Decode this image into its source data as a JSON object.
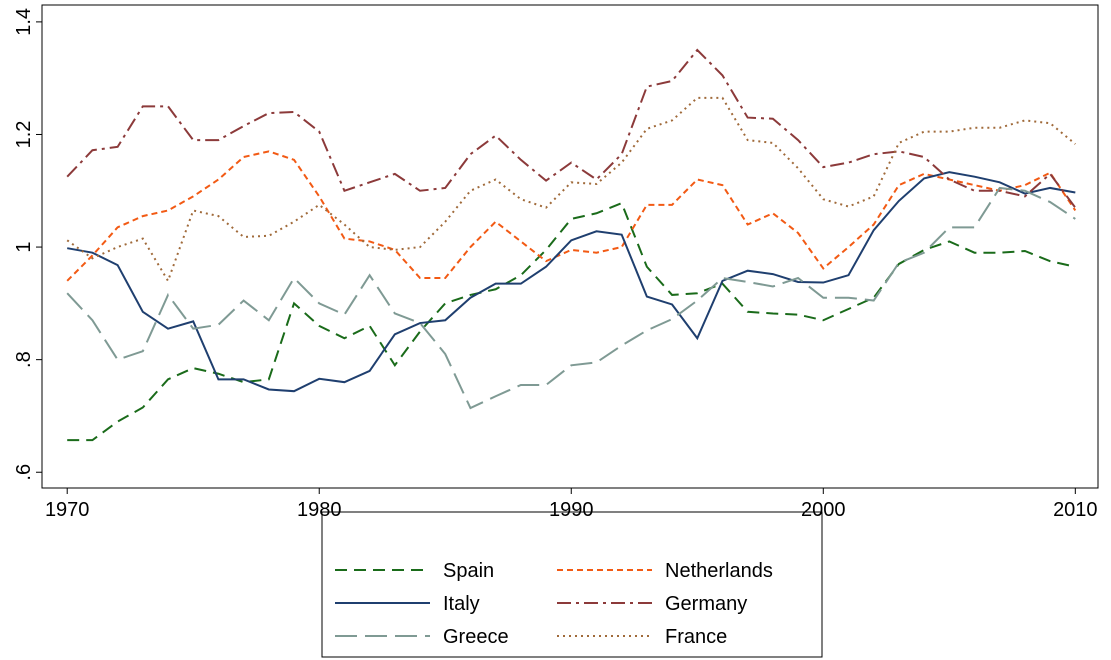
{
  "chart_data": {
    "type": "line",
    "x": [
      1970,
      1971,
      1972,
      1973,
      1974,
      1975,
      1976,
      1977,
      1978,
      1979,
      1980,
      1981,
      1982,
      1983,
      1984,
      1985,
      1986,
      1987,
      1988,
      1989,
      1990,
      1991,
      1992,
      1993,
      1994,
      1995,
      1996,
      1997,
      1998,
      1999,
      2000,
      2001,
      2002,
      2003,
      2004,
      2005,
      2006,
      2007,
      2008,
      2009,
      2010
    ],
    "xlim": [
      1969,
      2010.9
    ],
    "xticks": [
      1970,
      1980,
      1990,
      2000,
      2010
    ],
    "ylim": [
      0.572,
      1.43
    ],
    "yticks": [
      {
        "value": 0.6,
        "label": ".6"
      },
      {
        "value": 0.8,
        "label": ".8"
      },
      1,
      1.2,
      1.4
    ],
    "series": [
      {
        "name": "Spain",
        "color": "#1a6b1a",
        "style": "dash",
        "values": [
          0.657,
          0.657,
          0.69,
          0.715,
          0.765,
          0.785,
          0.775,
          0.76,
          0.765,
          0.9,
          0.86,
          0.838,
          0.86,
          0.79,
          0.85,
          0.9,
          0.915,
          0.925,
          0.95,
          0.995,
          1.05,
          1.06,
          1.078,
          0.965,
          0.915,
          0.918,
          0.935,
          0.885,
          0.882,
          0.88,
          0.87,
          0.89,
          0.91,
          0.97,
          0.995,
          1.01,
          0.99,
          0.99,
          0.993,
          0.975,
          0.965
        ]
      },
      {
        "name": "Netherlands",
        "color": "#f25a14",
        "style": "shortdash",
        "values": [
          0.94,
          0.985,
          1.035,
          1.055,
          1.065,
          1.09,
          1.12,
          1.16,
          1.17,
          1.155,
          1.09,
          1.015,
          1.01,
          0.995,
          0.945,
          0.945,
          1.0,
          1.045,
          1.01,
          0.975,
          0.995,
          0.99,
          1.0,
          1.075,
          1.075,
          1.12,
          1.11,
          1.04,
          1.06,
          1.025,
          0.962,
          1.0,
          1.04,
          1.11,
          1.13,
          1.12,
          1.11,
          1.1,
          1.11,
          1.132,
          1.065
        ]
      },
      {
        "name": "Italy",
        "color": "#1f3f6f",
        "style": "solid",
        "values": [
          0.998,
          0.99,
          0.968,
          0.885,
          0.855,
          0.868,
          0.765,
          0.765,
          0.747,
          0.744,
          0.766,
          0.76,
          0.78,
          0.845,
          0.865,
          0.87,
          0.91,
          0.935,
          0.935,
          0.965,
          1.012,
          1.028,
          1.022,
          0.912,
          0.898,
          0.838,
          0.94,
          0.958,
          0.952,
          0.938,
          0.937,
          0.95,
          1.03,
          1.082,
          1.122,
          1.133,
          1.125,
          1.115,
          1.095,
          1.105,
          1.097
        ]
      },
      {
        "name": "Germany",
        "color": "#8c3a3a",
        "style": "dashdot",
        "values": [
          1.125,
          1.172,
          1.178,
          1.25,
          1.25,
          1.19,
          1.19,
          1.215,
          1.238,
          1.24,
          1.205,
          1.1,
          1.115,
          1.13,
          1.1,
          1.105,
          1.165,
          1.198,
          1.155,
          1.118,
          1.15,
          1.12,
          1.165,
          1.285,
          1.295,
          1.35,
          1.305,
          1.23,
          1.228,
          1.19,
          1.142,
          1.15,
          1.165,
          1.17,
          1.16,
          1.12,
          1.1,
          1.1,
          1.09,
          1.13,
          1.07
        ]
      },
      {
        "name": "Greece",
        "color": "#7f9a94",
        "style": "longdash",
        "values": [
          0.918,
          0.87,
          0.8,
          0.815,
          0.915,
          0.855,
          0.862,
          0.905,
          0.87,
          0.945,
          0.9,
          0.88,
          0.95,
          0.882,
          0.865,
          0.81,
          0.714,
          0.735,
          0.755,
          0.755,
          0.79,
          0.795,
          0.825,
          0.852,
          0.872,
          0.905,
          0.945,
          0.938,
          0.93,
          0.945,
          0.91,
          0.91,
          0.905,
          0.972,
          0.99,
          1.035,
          1.035,
          1.105,
          1.1,
          1.08,
          1.05
        ]
      },
      {
        "name": "France",
        "color": "#a06a3a",
        "style": "dot",
        "values": [
          1.012,
          0.98,
          1.0,
          1.015,
          0.94,
          1.065,
          1.055,
          1.018,
          1.02,
          1.045,
          1.075,
          1.04,
          1.0,
          0.995,
          1.0,
          1.045,
          1.1,
          1.12,
          1.085,
          1.07,
          1.115,
          1.112,
          1.15,
          1.21,
          1.225,
          1.265,
          1.265,
          1.19,
          1.185,
          1.14,
          1.085,
          1.072,
          1.09,
          1.185,
          1.205,
          1.205,
          1.212,
          1.212,
          1.225,
          1.22,
          1.183
        ]
      }
    ]
  }
}
